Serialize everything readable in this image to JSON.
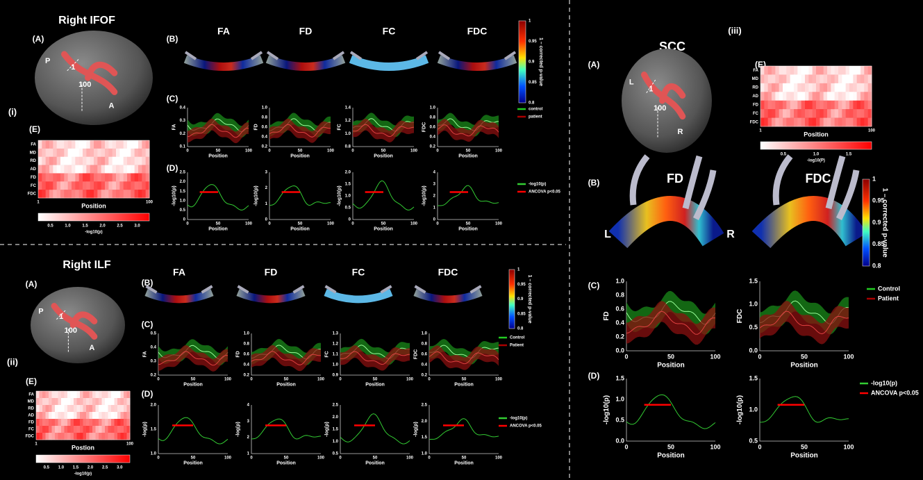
{
  "sections": [
    {
      "roman": "(i)",
      "title": "Right IFOF",
      "labels": [
        "(A)",
        "(B)",
        "(C)",
        "(D)",
        "(E)"
      ],
      "brain_labels": [
        "P",
        "1",
        "100",
        "A"
      ],
      "metrics": [
        "FA",
        "FD",
        "FC",
        "FDC"
      ],
      "pvalue_bar": {
        "label": "1 – corrected p-value",
        "ticks": [
          "1",
          "0.95",
          "0.9",
          "0.85",
          "0.8"
        ]
      },
      "c_plots": [
        {
          "ylabel": "FA",
          "yticks": [
            "0.4",
            "0.3",
            "0.2",
            "0.1"
          ]
        },
        {
          "ylabel": "FD",
          "yticks": [
            "1.0",
            "0.8",
            "0.6",
            "0.4",
            "0.2"
          ]
        },
        {
          "ylabel": "FC",
          "yticks": [
            "1.4",
            "1.2",
            "1.0",
            "0.8"
          ]
        },
        {
          "ylabel": "FDC",
          "yticks": [
            "1.0",
            "0.8",
            "0.6",
            "0.4",
            "0.2"
          ]
        }
      ],
      "c_legend": [
        "control",
        "patient"
      ],
      "d_plots": [
        {
          "ylabel": "-log10(p)",
          "yticks": [
            "2.5",
            "2.0",
            "1.5",
            "1.0",
            "0.5",
            "0"
          ]
        },
        {
          "ylabel": "-log10(p)",
          "yticks": [
            "3",
            "2",
            "1",
            "0"
          ]
        },
        {
          "ylabel": "-log10(p)",
          "yticks": [
            "2.0",
            "1.5",
            "1.0",
            "0.5",
            "0"
          ]
        },
        {
          "ylabel": "-log10(p)",
          "yticks": [
            "4",
            "3",
            "2",
            "1",
            "0"
          ]
        }
      ],
      "d_legend": [
        "-log10(p)",
        "ANCOVA p<0.05"
      ],
      "xticks": [
        "0",
        "50",
        "100"
      ],
      "xlabel": "Position",
      "heatmap": {
        "rows": [
          "FA",
          "MD",
          "RD",
          "AD",
          "FD",
          "FC",
          "FDC"
        ],
        "xticks": [
          "1",
          "100"
        ],
        "xlabel": "Position",
        "bar_ticks": [
          "0.5",
          "1.0",
          "1.5",
          "2.0",
          "2.5",
          "3.0"
        ],
        "bar_label": "-log10(p)"
      }
    },
    {
      "roman": "(ii)",
      "title": "Right ILF",
      "labels": [
        "(A)",
        "(B)",
        "(C)",
        "(D)",
        "(E)"
      ],
      "brain_labels": [
        "P",
        "1",
        "100",
        "A"
      ],
      "metrics": [
        "FA",
        "FD",
        "FC",
        "FDC"
      ],
      "pvalue_bar": {
        "label": "1 – corrected p-value",
        "ticks": [
          "1",
          "0.95",
          "0.9",
          "0.85",
          "0.8"
        ]
      },
      "c_plots": [
        {
          "ylabel": "FA",
          "yticks": [
            "0.5",
            "0.4",
            "0.3",
            "0.2"
          ]
        },
        {
          "ylabel": "FD",
          "yticks": [
            "1.0",
            "0.8",
            "0.6",
            "0.4",
            "0.2"
          ]
        },
        {
          "ylabel": "FC",
          "yticks": [
            "1.3",
            "1.2",
            "1.1",
            "1.0",
            "0.9"
          ]
        },
        {
          "ylabel": "FDC",
          "yticks": [
            "1.0",
            "0.8",
            "0.6",
            "0.4",
            "0.2"
          ]
        }
      ],
      "c_legend": [
        "Control",
        "Patient"
      ],
      "d_plots": [
        {
          "ylabel": "-log(p)",
          "yticks": [
            "2.0",
            "1.5",
            "1.0"
          ]
        },
        {
          "ylabel": "-log(p)",
          "yticks": [
            "4",
            "3",
            "2",
            "1"
          ]
        },
        {
          "ylabel": "-log(p)",
          "yticks": [
            "2.5",
            "2.0",
            "1.5",
            "1.0",
            "0.5"
          ]
        },
        {
          "ylabel": "-log(p)",
          "yticks": [
            "2.5",
            "2.0",
            "1.5",
            "1.0"
          ]
        }
      ],
      "d_legend": [
        "-log10(p)",
        "ANCOVA p<0.05"
      ],
      "xticks": [
        "0",
        "50",
        "100"
      ],
      "xlabel": "Position",
      "heatmap": {
        "rows": [
          "FA",
          "MD",
          "RD",
          "AD",
          "FD",
          "FC",
          "FDC"
        ],
        "xticks": [
          "1",
          "100"
        ],
        "xlabel": "Postion",
        "bar_ticks": [
          "0.5",
          "1.0",
          "1.5",
          "2.0",
          "2.5",
          "3.0"
        ],
        "bar_label": "-log10(p)"
      }
    },
    {
      "roman": "(iii)",
      "title": "SCC",
      "labels": [
        "(A)",
        "(B)",
        "(C)",
        "(D)",
        "(E)"
      ],
      "brain_labels": [
        "L",
        "1",
        "100",
        "R"
      ],
      "side_labels": [
        "L",
        "R"
      ],
      "metrics": [
        "FD",
        "FDC"
      ],
      "pvalue_bar": {
        "label": "1 – corrected p-value",
        "ticks": [
          "1",
          "0.95",
          "0.9",
          "0.85",
          "0.8"
        ]
      },
      "c_plots": [
        {
          "ylabel": "FD",
          "yticks": [
            "1.0",
            "0.8",
            "0.6",
            "0.4",
            "0.2",
            "0.0"
          ]
        },
        {
          "ylabel": "FDC",
          "yticks": [
            "1.5",
            "1.0",
            "0.5",
            "0.0"
          ]
        }
      ],
      "c_legend": [
        "Control",
        "Patient"
      ],
      "d_plots": [
        {
          "ylabel": "-log10(p)",
          "yticks": [
            "1.5",
            "1.0",
            "0.5",
            "0.0"
          ]
        },
        {
          "ylabel": "-log10(p)",
          "yticks": [
            "1.5",
            "1.0",
            "0.5"
          ]
        }
      ],
      "d_legend": [
        "-log10(p)",
        "ANCOVA p<0.05"
      ],
      "xticks": [
        "0",
        "50",
        "100"
      ],
      "xlabel": "Position",
      "heatmap": {
        "rows": [
          "FA",
          "MD",
          "RD",
          "AD",
          "FD",
          "FC",
          "FDC"
        ],
        "xticks": [
          "1",
          "100"
        ],
        "xlabel": "Position",
        "bar_ticks": [
          "0.5",
          "1.0",
          "1.5"
        ],
        "bar_label": "-log10(P)"
      }
    }
  ]
}
